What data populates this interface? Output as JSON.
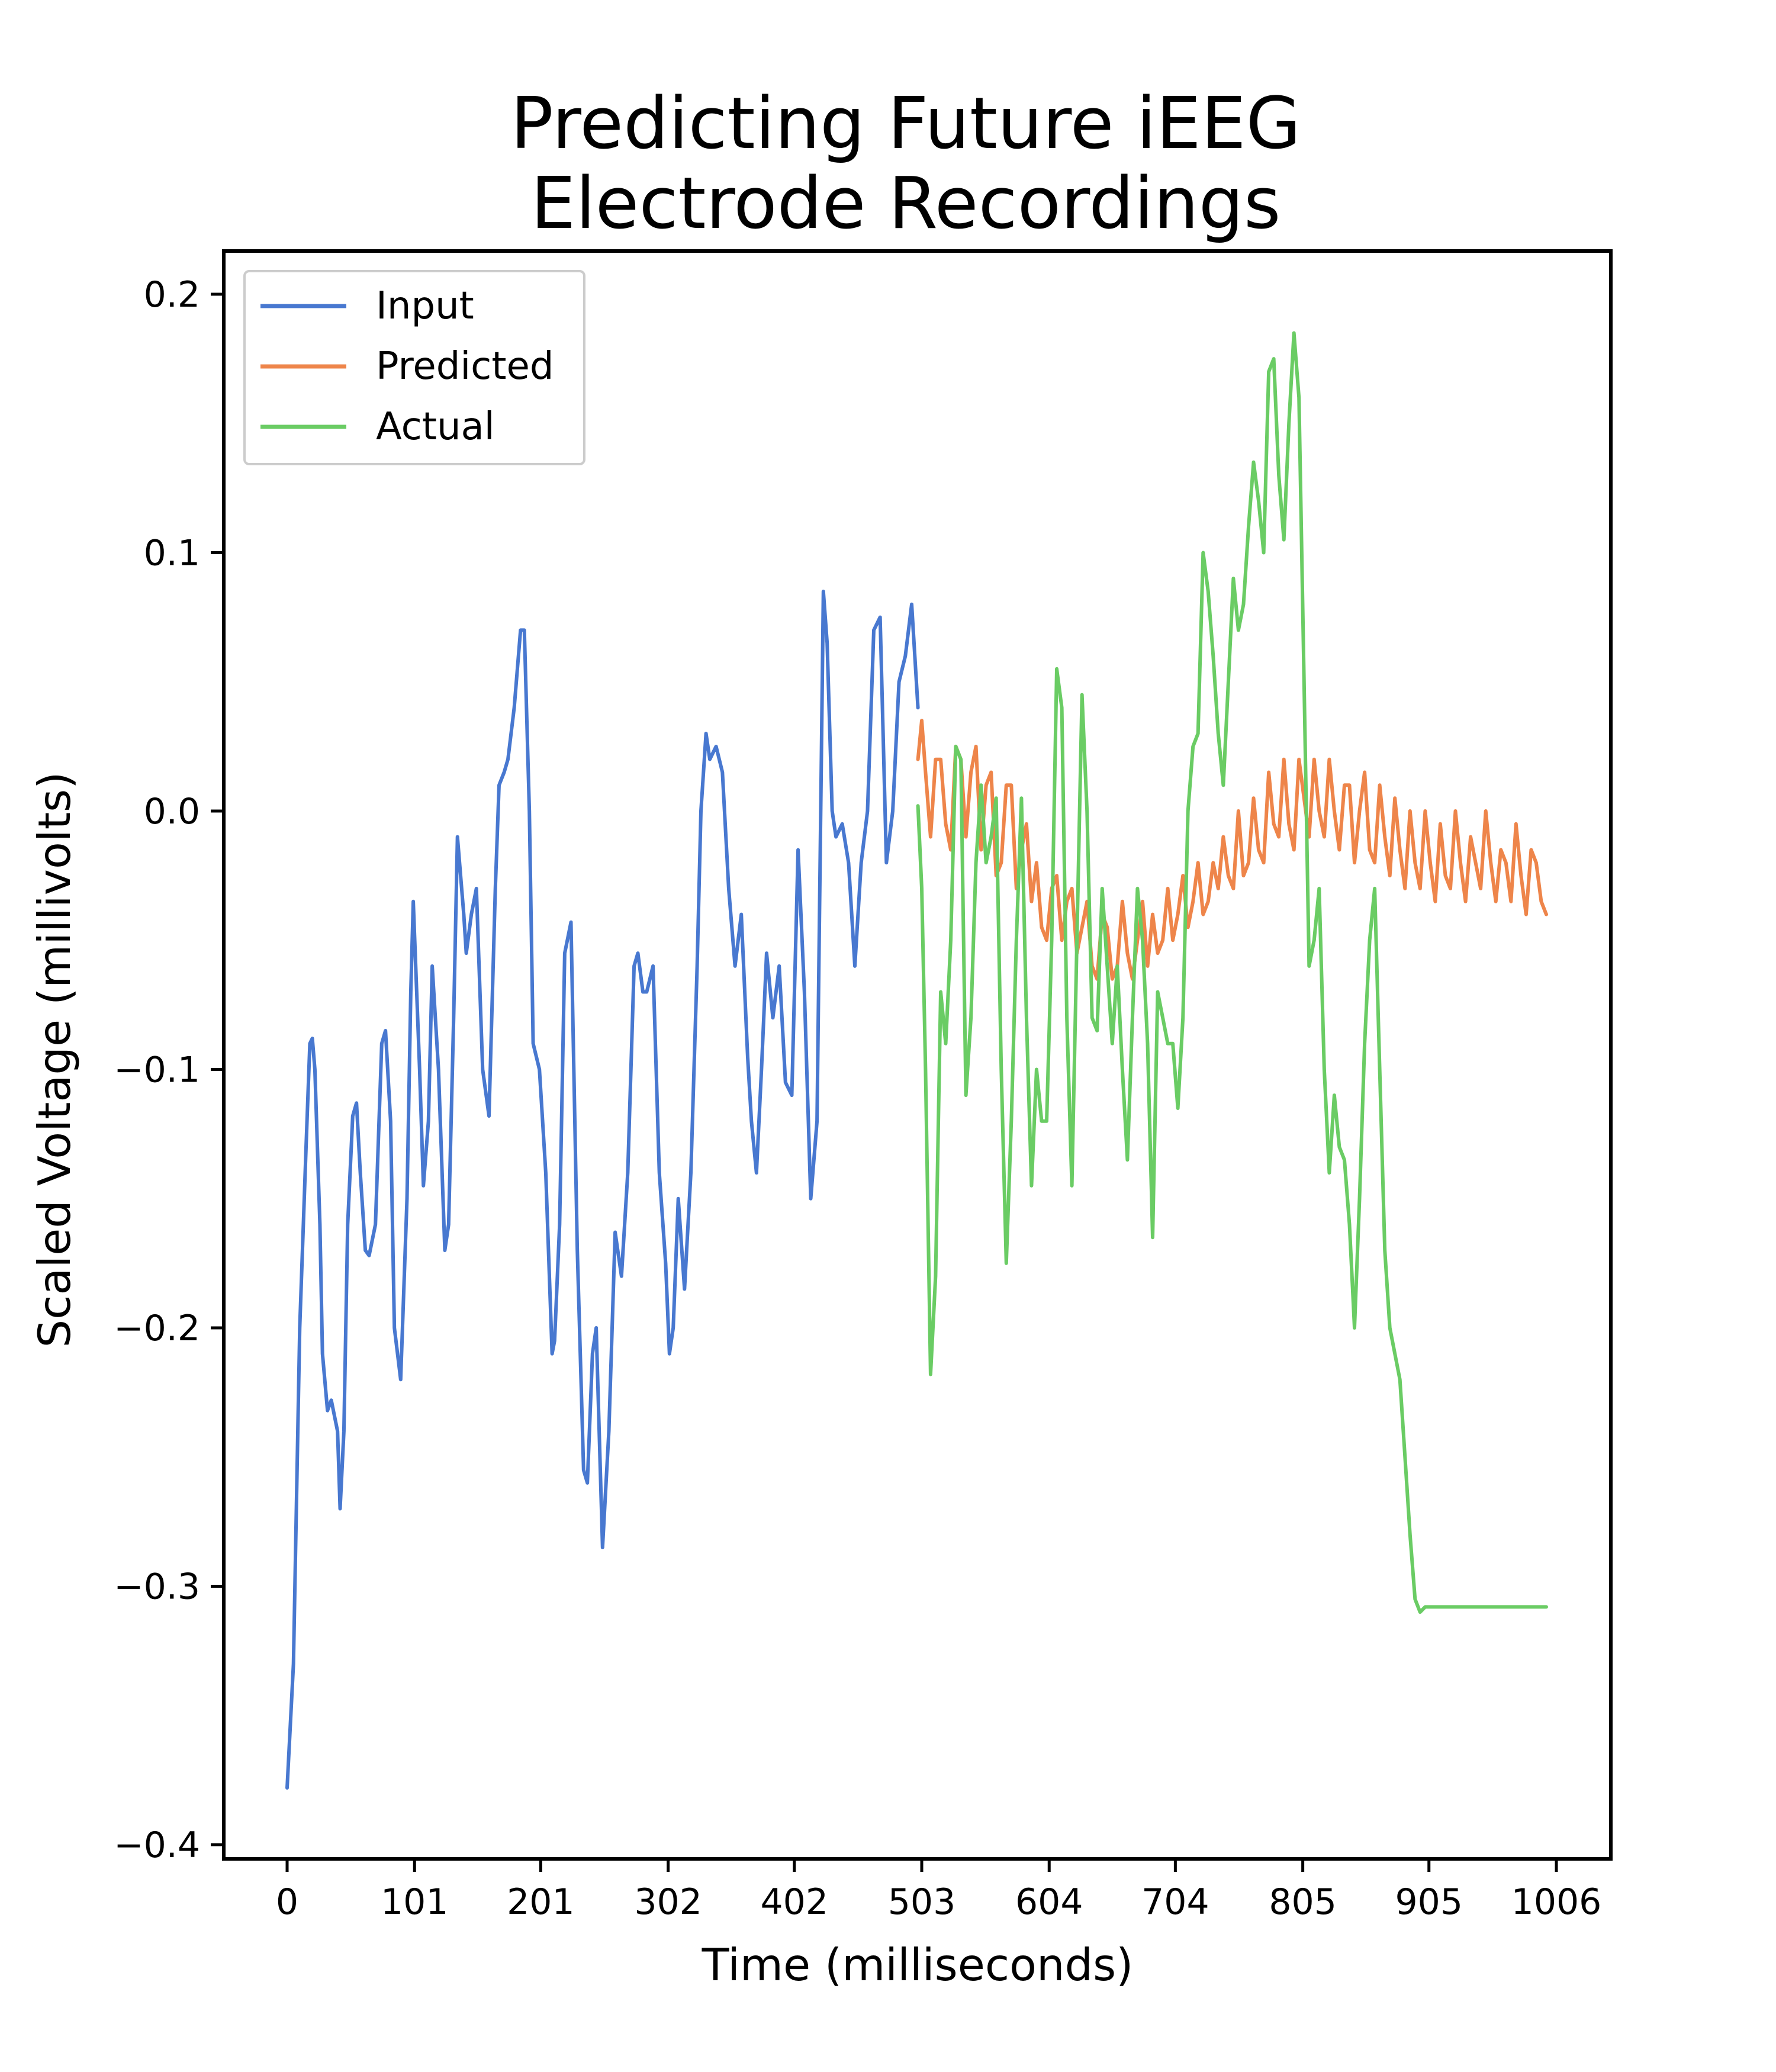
{
  "chart_data": {
    "type": "line",
    "title_lines": [
      "Predicting Future iEEG",
      "Electrode Recordings"
    ],
    "xlabel": "Time (milliseconds)",
    "ylabel": "Scaled Voltage (millivolts)",
    "xlim": [
      -25,
      1006
    ],
    "ylim": [
      -0.4,
      0.2
    ],
    "x_ticks": [
      0,
      101,
      201,
      302,
      402,
      503,
      604,
      704,
      805,
      905,
      1006
    ],
    "x_tick_labels": [
      "0",
      "101",
      "201",
      "302",
      "402",
      "503",
      "604",
      "704",
      "805",
      "905",
      "1006"
    ],
    "y_ticks": [
      0.2,
      0.1,
      0.0,
      -0.1,
      -0.2,
      -0.3,
      -0.4
    ],
    "y_tick_labels": [
      "0.2",
      "0.1",
      "0.0",
      "−0.1",
      "−0.2",
      "−0.3",
      "−0.4"
    ],
    "legend_position": "upper-left",
    "series": [
      {
        "name": "Input",
        "color": "#4878d0",
        "x": [
          0,
          5,
          10,
          15,
          18,
          20,
          22,
          26,
          28,
          32,
          35,
          40,
          42,
          45,
          48,
          52,
          55,
          58,
          62,
          65,
          70,
          75,
          78,
          82,
          85,
          90,
          95,
          98,
          100,
          105,
          108,
          112,
          115,
          120,
          125,
          128,
          132,
          135,
          140,
          142,
          146,
          150,
          155,
          160,
          165,
          168,
          172,
          175,
          180,
          185,
          188,
          192,
          195,
          200,
          205,
          210,
          212,
          216,
          220,
          225,
          230,
          235,
          238,
          242,
          245,
          250,
          255,
          260,
          265,
          270,
          275,
          278,
          282,
          285,
          290,
          295,
          300,
          303,
          306,
          310,
          315,
          320,
          325,
          328,
          332,
          335,
          340,
          345,
          350,
          355,
          360,
          365,
          368,
          372,
          376,
          380,
          385,
          390,
          395,
          400,
          405,
          410,
          415,
          420,
          425,
          428,
          432,
          435,
          440,
          445,
          450,
          455,
          460,
          465,
          470,
          475,
          480,
          485,
          490,
          495,
          500
        ],
        "y": [
          -0.378,
          -0.33,
          -0.2,
          -0.13,
          -0.09,
          -0.088,
          -0.1,
          -0.16,
          -0.21,
          -0.232,
          -0.228,
          -0.24,
          -0.27,
          -0.24,
          -0.16,
          -0.118,
          -0.113,
          -0.14,
          -0.17,
          -0.172,
          -0.16,
          -0.09,
          -0.085,
          -0.12,
          -0.2,
          -0.22,
          -0.15,
          -0.07,
          -0.035,
          -0.1,
          -0.145,
          -0.12,
          -0.06,
          -0.1,
          -0.17,
          -0.16,
          -0.08,
          -0.01,
          -0.04,
          -0.055,
          -0.04,
          -0.03,
          -0.1,
          -0.118,
          -0.03,
          0.01,
          0.015,
          0.02,
          0.04,
          0.07,
          0.07,
          0.0,
          -0.09,
          -0.1,
          -0.14,
          -0.21,
          -0.205,
          -0.16,
          -0.055,
          -0.043,
          -0.17,
          -0.255,
          -0.26,
          -0.21,
          -0.2,
          -0.285,
          -0.24,
          -0.163,
          -0.18,
          -0.14,
          -0.06,
          -0.055,
          -0.07,
          -0.07,
          -0.06,
          -0.14,
          -0.175,
          -0.21,
          -0.2,
          -0.15,
          -0.185,
          -0.14,
          -0.06,
          0.0,
          0.03,
          0.02,
          0.025,
          0.015,
          -0.03,
          -0.06,
          -0.04,
          -0.095,
          -0.12,
          -0.14,
          -0.1,
          -0.055,
          -0.08,
          -0.06,
          -0.105,
          -0.11,
          -0.015,
          -0.07,
          -0.15,
          -0.12,
          0.085,
          0.065,
          0.0,
          -0.01,
          -0.005,
          -0.02,
          -0.06,
          -0.02,
          0.0,
          0.07,
          0.075,
          -0.02,
          0.0,
          0.05,
          0.06,
          0.08,
          0.04
        ]
      },
      {
        "name": "Predicted",
        "color": "#ee854a",
        "x": [
          500,
          503,
          506,
          510,
          514,
          518,
          522,
          526,
          530,
          534,
          538,
          542,
          546,
          550,
          554,
          558,
          562,
          566,
          570,
          574,
          578,
          582,
          586,
          590,
          594,
          598,
          602,
          606,
          610,
          614,
          618,
          622,
          626,
          630,
          634,
          638,
          642,
          646,
          650,
          654,
          658,
          662,
          666,
          670,
          674,
          678,
          682,
          686,
          690,
          694,
          698,
          702,
          706,
          710,
          714,
          718,
          722,
          726,
          730,
          734,
          738,
          742,
          746,
          750,
          754,
          758,
          762,
          766,
          770,
          774,
          778,
          782,
          786,
          790,
          794,
          798,
          802,
          806,
          810,
          814,
          818,
          822,
          826,
          830,
          834,
          838,
          842,
          846,
          850,
          854,
          858,
          862,
          866,
          870,
          874,
          878,
          882,
          886,
          890,
          894,
          898,
          902,
          906,
          910,
          914,
          918,
          922,
          926,
          930,
          934,
          938,
          942,
          946,
          950,
          954,
          958,
          962,
          966,
          970,
          974,
          978,
          982,
          986,
          990,
          994,
          998
        ],
        "y": [
          0.02,
          0.035,
          0.015,
          -0.01,
          0.02,
          0.02,
          -0.005,
          -0.015,
          0.025,
          0.02,
          -0.01,
          0.015,
          0.025,
          -0.015,
          0.01,
          0.015,
          -0.025,
          -0.02,
          0.01,
          0.01,
          -0.03,
          -0.015,
          -0.005,
          -0.035,
          -0.02,
          -0.045,
          -0.05,
          -0.03,
          -0.025,
          -0.05,
          -0.035,
          -0.03,
          -0.055,
          -0.045,
          -0.035,
          -0.06,
          -0.065,
          -0.04,
          -0.045,
          -0.065,
          -0.06,
          -0.035,
          -0.055,
          -0.065,
          -0.05,
          -0.035,
          -0.06,
          -0.04,
          -0.055,
          -0.05,
          -0.03,
          -0.05,
          -0.04,
          -0.025,
          -0.045,
          -0.035,
          -0.02,
          -0.04,
          -0.035,
          -0.02,
          -0.03,
          -0.01,
          -0.025,
          -0.03,
          0.0,
          -0.025,
          -0.02,
          0.005,
          -0.015,
          -0.02,
          0.015,
          -0.005,
          -0.01,
          0.02,
          -0.005,
          -0.015,
          0.02,
          0.005,
          -0.01,
          0.02,
          0.0,
          -0.01,
          0.02,
          0.0,
          -0.015,
          0.01,
          0.01,
          -0.02,
          0.0,
          0.015,
          -0.015,
          -0.02,
          0.01,
          -0.01,
          -0.025,
          0.005,
          -0.015,
          -0.03,
          0.0,
          -0.02,
          -0.03,
          0.0,
          -0.02,
          -0.035,
          -0.005,
          -0.025,
          -0.03,
          0.0,
          -0.02,
          -0.035,
          -0.01,
          -0.02,
          -0.03,
          0.0,
          -0.02,
          -0.035,
          -0.015,
          -0.02,
          -0.035,
          -0.005,
          -0.025,
          -0.04,
          -0.015,
          -0.02,
          -0.035,
          -0.04
        ]
      },
      {
        "name": "Actual",
        "color": "#6acc64",
        "x": [
          500,
          503,
          506,
          510,
          514,
          518,
          522,
          526,
          530,
          534,
          538,
          542,
          546,
          550,
          554,
          558,
          562,
          566,
          570,
          574,
          578,
          582,
          586,
          590,
          594,
          598,
          602,
          606,
          610,
          614,
          618,
          622,
          626,
          630,
          634,
          638,
          642,
          646,
          650,
          654,
          658,
          662,
          666,
          670,
          674,
          678,
          682,
          686,
          690,
          694,
          698,
          702,
          706,
          710,
          714,
          718,
          722,
          726,
          730,
          734,
          738,
          742,
          746,
          750,
          754,
          758,
          762,
          766,
          770,
          774,
          778,
          782,
          786,
          790,
          794,
          798,
          802,
          806,
          810,
          814,
          818,
          822,
          826,
          830,
          834,
          838,
          842,
          846,
          850,
          854,
          858,
          862,
          866,
          870,
          874,
          878,
          882,
          886,
          890,
          894,
          898,
          902,
          906,
          910,
          914,
          918,
          922,
          926,
          930,
          934,
          938,
          942,
          946,
          950,
          954,
          958,
          962,
          966,
          970,
          974,
          978,
          982,
          986,
          990,
          994,
          998
        ],
        "y": [
          0.002,
          -0.03,
          -0.1,
          -0.218,
          -0.18,
          -0.07,
          -0.09,
          -0.05,
          0.025,
          0.02,
          -0.11,
          -0.08,
          -0.02,
          0.01,
          -0.02,
          -0.01,
          0.005,
          -0.1,
          -0.175,
          -0.12,
          -0.05,
          0.005,
          -0.08,
          -0.145,
          -0.1,
          -0.12,
          -0.12,
          -0.05,
          0.055,
          0.04,
          -0.08,
          -0.145,
          -0.05,
          0.045,
          0.0,
          -0.08,
          -0.085,
          -0.03,
          -0.06,
          -0.09,
          -0.06,
          -0.1,
          -0.135,
          -0.08,
          -0.03,
          -0.05,
          -0.09,
          -0.165,
          -0.07,
          -0.08,
          -0.09,
          -0.09,
          -0.115,
          -0.08,
          0.0,
          0.025,
          0.03,
          0.1,
          0.085,
          0.06,
          0.03,
          0.01,
          0.05,
          0.09,
          0.07,
          0.08,
          0.11,
          0.135,
          0.12,
          0.1,
          0.17,
          0.175,
          0.13,
          0.105,
          0.15,
          0.185,
          0.16,
          0.05,
          -0.06,
          -0.05,
          -0.03,
          -0.1,
          -0.14,
          -0.11,
          -0.13,
          -0.135,
          -0.16,
          -0.2,
          -0.15,
          -0.09,
          -0.05,
          -0.03,
          -0.1,
          -0.17,
          -0.2,
          -0.21,
          -0.22,
          -0.25,
          -0.28,
          -0.305,
          -0.31,
          -0.308,
          -0.308,
          -0.308,
          -0.308,
          -0.308,
          -0.308,
          -0.308,
          -0.308,
          -0.308,
          -0.308,
          -0.308,
          -0.308,
          -0.308,
          -0.308,
          -0.308,
          -0.308,
          -0.308,
          -0.308,
          -0.308,
          -0.308,
          -0.308,
          -0.308,
          -0.308,
          -0.308,
          -0.308
        ]
      }
    ]
  }
}
